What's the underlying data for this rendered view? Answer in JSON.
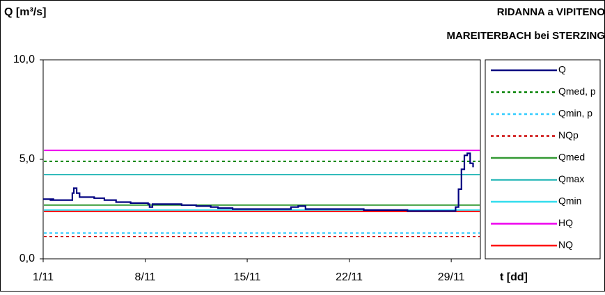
{
  "chart_data": {
    "type": "line",
    "title": "RIDANNA a VIPITENO",
    "subtitle": "MAREITERBACH bei STERZING",
    "y_label": "Q [m³/s]",
    "x_label": "t [dd]",
    "xlim": [
      1,
      31
    ],
    "xticks": [
      {
        "value": 1,
        "label": "1/11"
      },
      {
        "value": 8,
        "label": "8/11"
      },
      {
        "value": 15,
        "label": "15/11"
      },
      {
        "value": 22,
        "label": "22/11"
      },
      {
        "value": 29,
        "label": "29/11"
      }
    ],
    "ylim": [
      0,
      10
    ],
    "yticks": [
      {
        "value": 0,
        "label": "0,0"
      },
      {
        "value": 5,
        "label": "5,0"
      },
      {
        "value": 10,
        "label": "10,0"
      }
    ],
    "legend": "right",
    "series": [
      {
        "name": "Q",
        "color": "#000080",
        "dash": "solid",
        "x": [
          1,
          1.5,
          1.6,
          1.7,
          2.9,
          3.0,
          3.1,
          3.3,
          3.5,
          4.5,
          5.2,
          6.0,
          7.0,
          8.2,
          8.3,
          8.5,
          9.0,
          10.5,
          11.5,
          12.5,
          13.0,
          14.0,
          17.5,
          18.0,
          18.5,
          19.0,
          22.0,
          23.0,
          25.5,
          26.0,
          29.0,
          29.3,
          29.5,
          29.7,
          29.9,
          30.1,
          30.3,
          30.5
        ],
        "values": [
          3.0,
          2.95,
          3.0,
          2.95,
          2.95,
          3.3,
          3.55,
          3.3,
          3.1,
          3.05,
          2.95,
          2.85,
          2.8,
          2.75,
          2.6,
          2.75,
          2.75,
          2.7,
          2.65,
          2.6,
          2.55,
          2.5,
          2.5,
          2.6,
          2.65,
          2.5,
          2.5,
          2.45,
          2.45,
          2.4,
          2.4,
          2.6,
          3.5,
          4.5,
          5.2,
          5.3,
          4.8,
          4.6
        ]
      },
      {
        "name": "Qmed, p",
        "color": "#008000",
        "dash": "dotted",
        "value": 4.9
      },
      {
        "name": "Qmin, p",
        "color": "#33ccff",
        "dash": "dotted",
        "value": 1.3
      },
      {
        "name": "NQp",
        "color": "#cc0000",
        "dash": "dotted",
        "value": 1.12
      },
      {
        "name": "Qmed",
        "color": "#339933",
        "dash": "solid",
        "value": 2.7
      },
      {
        "name": "Qmax",
        "color": "#33bbbb",
        "dash": "solid",
        "value": 4.23
      },
      {
        "name": "Qmin",
        "color": "#33ddee",
        "dash": "solid",
        "value": 2.45
      },
      {
        "name": "HQ",
        "color": "#ee00ee",
        "dash": "solid",
        "value": 5.45
      },
      {
        "name": "NQ",
        "color": "#ff0000",
        "dash": "solid",
        "value": 2.38
      }
    ]
  }
}
